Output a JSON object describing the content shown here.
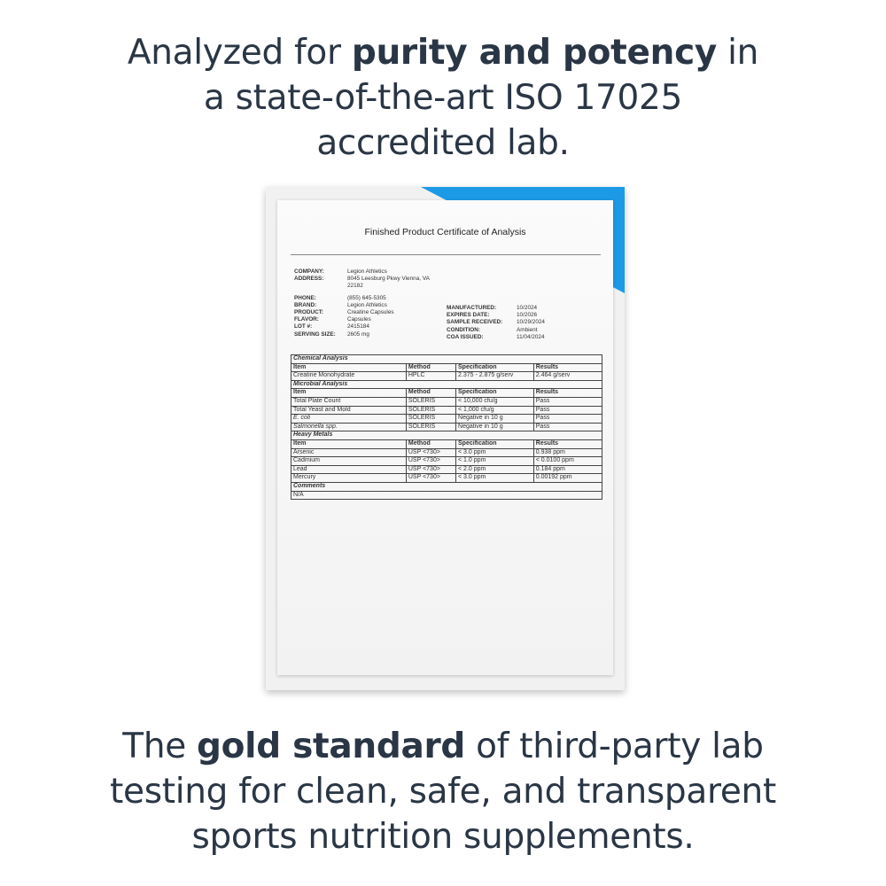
{
  "headline_top": {
    "pre": "Analyzed for ",
    "bold": "purity and potency",
    "post": " in",
    "line2": "a state-of-the-art ISO 17025",
    "line3": "accredited lab."
  },
  "headline_bottom": {
    "pre": "The ",
    "bold": "gold standard",
    "post": " of third-party lab",
    "line2": "testing for clean, safe, and transparent",
    "line3": "sports nutrition supplements."
  },
  "accent_color": "#1d9ae6",
  "document": {
    "title": "Finished Product Certificate of Analysis",
    "left_info": [
      [
        "COMPANY:",
        "Legion Athletics"
      ],
      [
        "ADDRESS:",
        "8045 Leesburg Pkwy Vienna, VA"
      ],
      [
        "",
        "22182"
      ],
      [
        "PHONE:",
        "(855) 645-5305"
      ],
      [
        "BRAND:",
        "Legion Athletics"
      ],
      [
        "PRODUCT:",
        "Creatine Capsules"
      ],
      [
        "FLAVOR:",
        "Capsules"
      ],
      [
        "LOT #:",
        "2415184"
      ],
      [
        "SERVING SIZE:",
        "2605 mg"
      ]
    ],
    "right_info": [
      [
        "MANUFACTURED:",
        "10/2024"
      ],
      [
        "EXPIRES DATE:",
        "10/2026"
      ],
      [
        "SAMPLE RECEIVED:",
        "10/29/2024"
      ],
      [
        "CONDITION:",
        "Ambient"
      ],
      [
        "COA ISSUED:",
        "11/04/2024"
      ]
    ],
    "headers": [
      "Item",
      "Method",
      "Specification",
      "Results"
    ],
    "sections": [
      {
        "title": "Chemical Analysis",
        "rows": [
          [
            "Creatine Monohydrate",
            "HPLC",
            "2.375 - 2.875 g/serv",
            "2.464 g/serv"
          ]
        ]
      },
      {
        "title": "Microbial Analysis",
        "rows": [
          [
            "Total Plate Count",
            "SOLERIS",
            "< 10,000 cfu/g",
            "Pass"
          ],
          [
            "Total Yeast and Mold",
            "SOLERIS",
            "< 1,000 cfu/g",
            "Pass"
          ],
          [
            "E. coli",
            "SOLERIS",
            "Negative in 10 g",
            "Pass"
          ],
          [
            "Salmonella spp.",
            "SOLERIS",
            "Negative in 10 g",
            "Pass"
          ]
        ]
      },
      {
        "title": "Heavy Metals",
        "rows": [
          [
            "Arsenic",
            "USP <730>",
            "< 3.0 ppm",
            "0.938 ppm"
          ],
          [
            "Cadmium",
            "USP <730>",
            "< 1.0 ppm",
            "< 0.0100 ppm"
          ],
          [
            "Lead",
            "USP <730>",
            "< 2.0 ppm",
            "0.184 ppm"
          ],
          [
            "Mercury",
            "USP <730>",
            "< 3.0 ppm",
            "0.00192 ppm"
          ]
        ]
      }
    ],
    "comments_title": "Comments",
    "comments": "N/A"
  }
}
